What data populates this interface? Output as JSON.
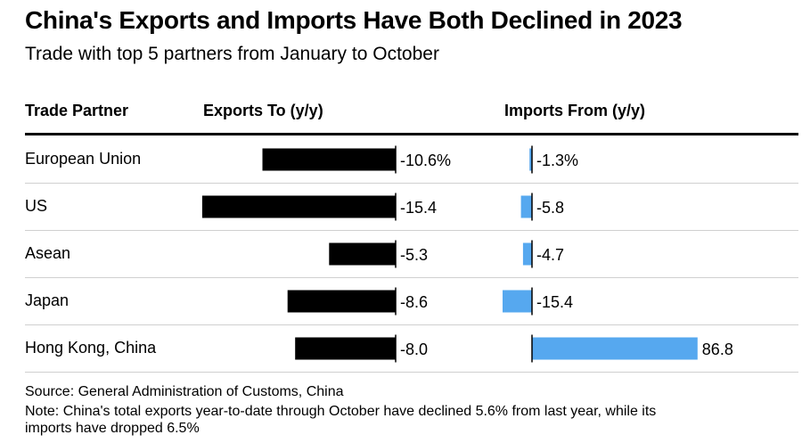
{
  "header": {
    "title": "China's Exports and Imports Have Both Declined in 2023",
    "subtitle": "Trade with top 5 partners from January to October"
  },
  "columns": {
    "partner": "Trade Partner",
    "exports": "Exports To (y/y)",
    "imports": "Imports From (y/y)"
  },
  "chart_data": {
    "type": "bar",
    "title": "China's Exports and Imports Have Both Declined in 2023",
    "subtitle": "Trade with top 5 partners from January to October",
    "categories": [
      "European Union",
      "US",
      "Asean",
      "Japan",
      "Hong Kong, China"
    ],
    "series": [
      {
        "name": "Exports To (y/y)",
        "values": [
          -10.6,
          -15.4,
          -5.3,
          -8.6,
          -8.0
        ],
        "labels": [
          "-10.6%",
          "-15.4",
          "-5.3",
          "-8.6",
          "-8.0"
        ],
        "color": "#000000"
      },
      {
        "name": "Imports From (y/y)",
        "values": [
          -1.3,
          -5.8,
          -4.7,
          -15.4,
          86.8
        ],
        "labels": [
          "-1.3%",
          "-5.8",
          "-4.7",
          "-15.4",
          "86.8"
        ],
        "color": "#56A8EF"
      }
    ],
    "unit": "%",
    "orientation": "horizontal"
  },
  "footer": {
    "source": "Source: General Administration of Customs, China",
    "note_line1": "Note: China's total exports year-to-date through October have declined 5.6% from last year, while its",
    "note_line2": "imports have dropped 6.5%"
  }
}
